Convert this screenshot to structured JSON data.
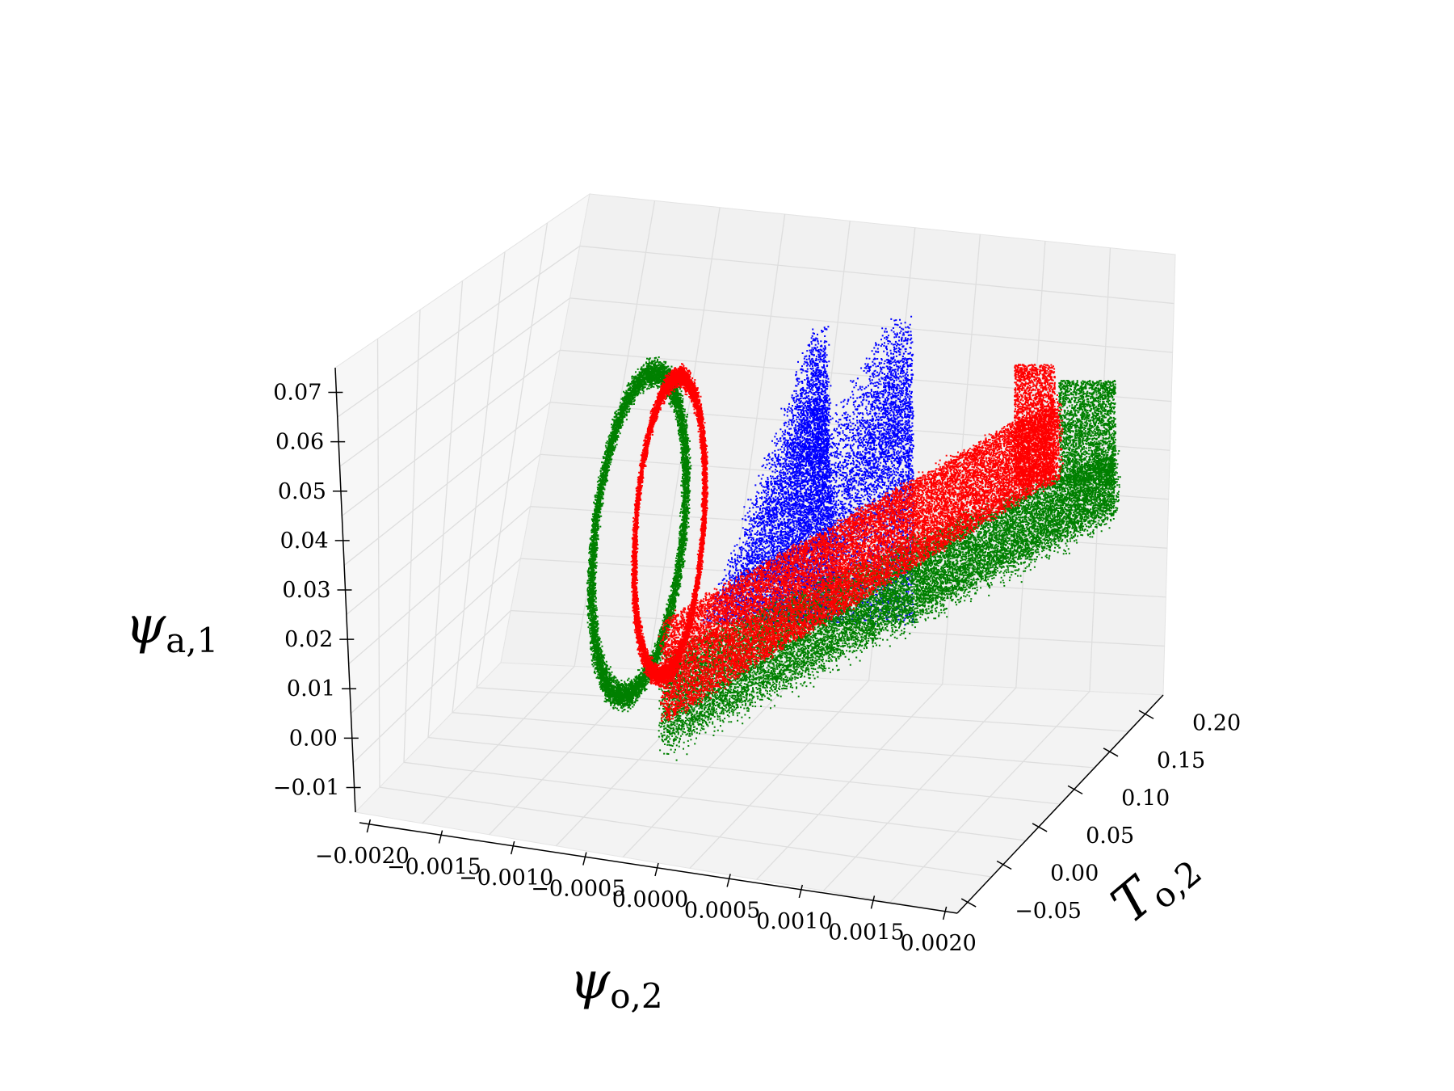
{
  "chart_data": {
    "type": "scatter",
    "title": "",
    "projection": "3d",
    "grid": true,
    "x_axis": {
      "label": {
        "symbol": "ψ",
        "subscript": "o,2"
      },
      "range": [
        -0.002,
        0.002
      ],
      "ticks": [
        "−0.0020",
        "−0.0015",
        "−0.0010",
        "−0.0005",
        "0.0000",
        "0.0005",
        "0.0010",
        "0.0015",
        "0.0020"
      ]
    },
    "y_axis": {
      "label": {
        "symbol": "T",
        "subscript": "o,2"
      },
      "range": [
        -0.05,
        0.2
      ],
      "ticks": [
        "−0.05",
        "0.00",
        "0.05",
        "0.10",
        "0.15",
        "0.20"
      ]
    },
    "z_axis": {
      "label": {
        "symbol": "ψ",
        "subscript": "a,1"
      },
      "range": [
        -0.01,
        0.07
      ],
      "ticks": [
        "−0.01",
        "0.00",
        "0.01",
        "0.02",
        "0.03",
        "0.04",
        "0.05",
        "0.06",
        "0.07"
      ]
    },
    "series": [
      {
        "color": "#008000",
        "shape": "wide-band",
        "lobe_x": -0.0013,
        "z_range": [
          0.0,
          0.063
        ],
        "band_end_y": 0.2
      },
      {
        "color": "#ff0000",
        "shape": "band",
        "lobe_x": -0.0008,
        "z_range": [
          0.005,
          0.058
        ],
        "band_end_y": 0.17
      },
      {
        "color": "#0000ff",
        "shape": "wedges",
        "x_range": [
          -0.0003,
          0.0008
        ],
        "z_range": [
          0.02,
          0.072
        ]
      }
    ]
  }
}
